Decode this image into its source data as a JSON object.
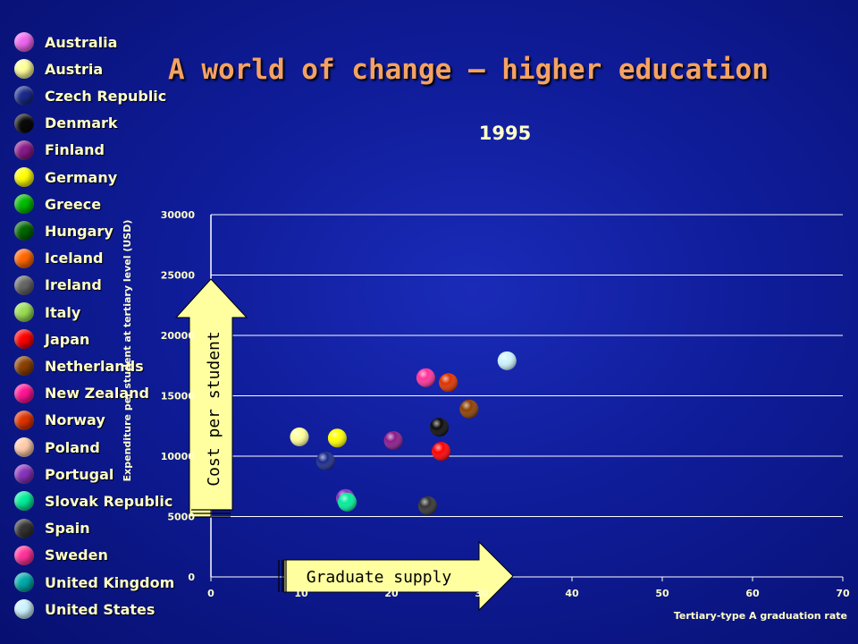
{
  "title": "A world of change – higher education",
  "legend": [
    {
      "label": "Australia",
      "color": "#ee66ee"
    },
    {
      "label": "Austria",
      "color": "#ffff99"
    },
    {
      "label": "Czech Republic",
      "color": "#1a2a8a"
    },
    {
      "label": "Denmark",
      "color": "#0a0a0a"
    },
    {
      "label": "Finland",
      "color": "#8a1a8a"
    },
    {
      "label": "Germany",
      "color": "#ffff00"
    },
    {
      "label": "Greece",
      "color": "#00bb00"
    },
    {
      "label": "Hungary",
      "color": "#006600"
    },
    {
      "label": "Iceland",
      "color": "#ff6600"
    },
    {
      "label": "Ireland",
      "color": "#666666"
    },
    {
      "label": "Italy",
      "color": "#99dd55"
    },
    {
      "label": "Japan",
      "color": "#ff0000"
    },
    {
      "label": "Netherlands",
      "color": "#8b4000"
    },
    {
      "label": "New Zealand",
      "color": "#ff1493"
    },
    {
      "label": "Norway",
      "color": "#dd3300"
    },
    {
      "label": "Poland",
      "color": "#ffccaa"
    },
    {
      "label": "Portugal",
      "color": "#8833bb"
    },
    {
      "label": "Slovak Republic",
      "color": "#00ee99"
    },
    {
      "label": "Spain",
      "color": "#333333"
    },
    {
      "label": "Sweden",
      "color": "#ff3399"
    },
    {
      "label": "United Kingdom",
      "color": "#00aaaa"
    },
    {
      "label": "United States",
      "color": "#ccf4ff"
    }
  ],
  "arrows": {
    "y_label": "Cost per student",
    "x_label": "Graduate supply",
    "fill": "#ffffa0"
  },
  "chart_data": {
    "type": "scatter",
    "subtitle": "1995",
    "xlabel": "Tertiary-type A graduation rate",
    "ylabel": "Expenditure per student at tertiary level (USD)",
    "xlim": [
      0,
      70
    ],
    "ylim": [
      0,
      30000
    ],
    "x_ticks": [
      "0",
      "10",
      "20",
      "30",
      "40",
      "50",
      "60",
      "70"
    ],
    "y_ticks": [
      "0",
      "5000",
      "10000",
      "15000",
      "20000",
      "25000",
      "30000"
    ],
    "grid": "horizontal",
    "points": [
      {
        "country": "United States",
        "x": 32.8,
        "y": 17900
      },
      {
        "country": "Sweden",
        "x": 23.8,
        "y": 16500
      },
      {
        "country": "Norway",
        "x": 26.3,
        "y": 16100
      },
      {
        "country": "Netherlands",
        "x": 28.6,
        "y": 13900
      },
      {
        "country": "Denmark",
        "x": 25.3,
        "y": 12400
      },
      {
        "country": "Japan",
        "x": 25.5,
        "y": 10400
      },
      {
        "country": "Finland",
        "x": 20.2,
        "y": 11300
      },
      {
        "country": "Austria",
        "x": 9.8,
        "y": 11600
      },
      {
        "country": "Germany",
        "x": 14.0,
        "y": 11500
      },
      {
        "country": "Czech Republic",
        "x": 12.7,
        "y": 9600
      },
      {
        "country": "Portugal",
        "x": 14.9,
        "y": 6500
      },
      {
        "country": "Slovak Republic",
        "x": 15.1,
        "y": 6200
      },
      {
        "country": "Spain",
        "x": 24.0,
        "y": 5900
      }
    ]
  }
}
